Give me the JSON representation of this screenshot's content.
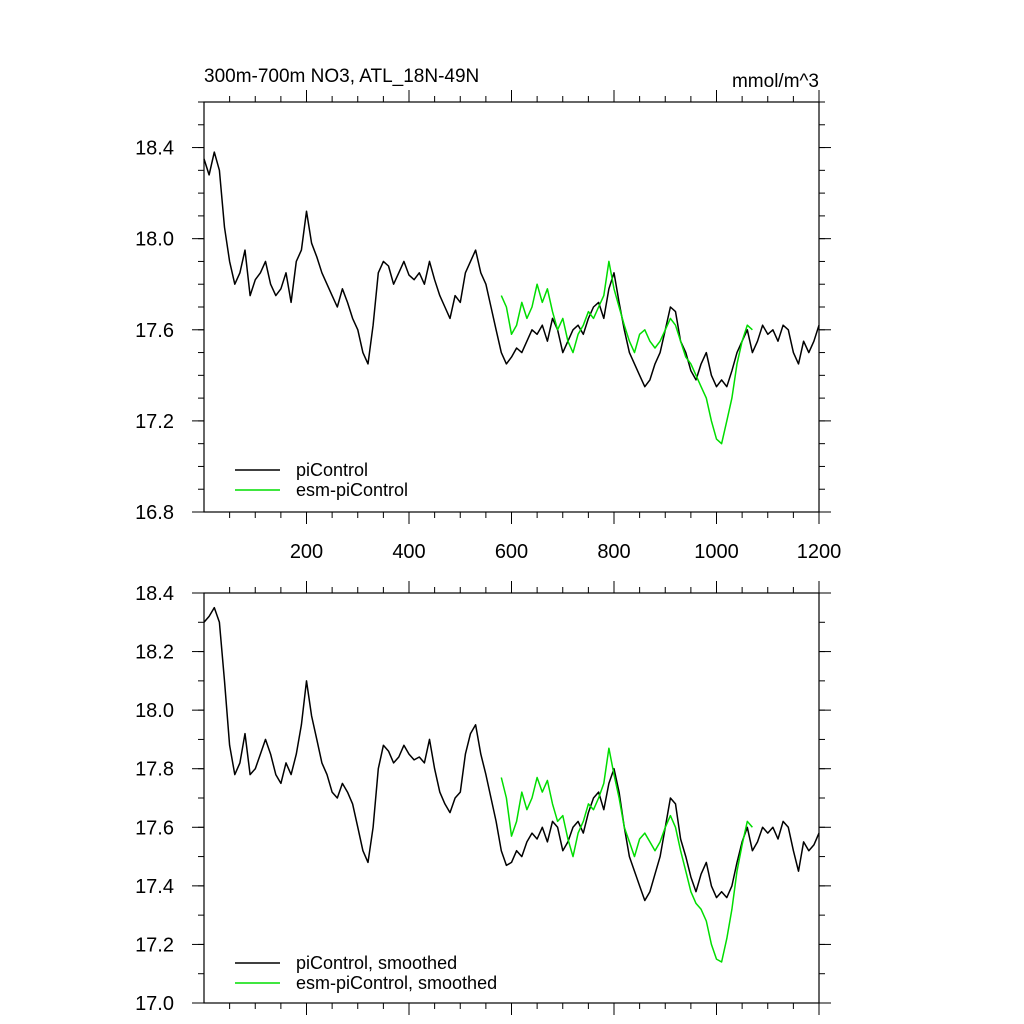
{
  "colors": {
    "piControl": "#000000",
    "esm_piControl": "#00dd00"
  },
  "chart_data": [
    {
      "type": "line",
      "title": "300m-700m NO3, ATL_18N-49N",
      "units": "mmol/m^3",
      "xlim": [
        0,
        1200
      ],
      "ylim": [
        16.8,
        18.6
      ],
      "xticks": [
        200,
        400,
        600,
        800,
        1000,
        1200
      ],
      "xtick_labels": [
        "200",
        "400",
        "600",
        "800",
        "1000",
        "1200"
      ],
      "yticks": [
        16.8,
        17.2,
        17.6,
        18.0,
        18.4
      ],
      "ytick_labels": [
        "16.8",
        "17.2",
        "17.6",
        "18.0",
        "18.4"
      ],
      "legend": [
        "piControl",
        "esm-piControl"
      ],
      "legend_position": "bottom-left",
      "series": [
        {
          "name": "piControl",
          "x": [
            0,
            10,
            20,
            30,
            40,
            50,
            60,
            70,
            80,
            90,
            100,
            110,
            120,
            130,
            140,
            150,
            160,
            170,
            180,
            190,
            200,
            210,
            220,
            230,
            240,
            250,
            260,
            270,
            280,
            290,
            300,
            310,
            320,
            330,
            340,
            350,
            360,
            370,
            380,
            390,
            400,
            410,
            420,
            430,
            440,
            450,
            460,
            470,
            480,
            490,
            500,
            510,
            520,
            530,
            540,
            550,
            560,
            570,
            580,
            590,
            600,
            610,
            620,
            630,
            640,
            650,
            660,
            670,
            680,
            690,
            700,
            710,
            720,
            730,
            740,
            750,
            760,
            770,
            780,
            790,
            800,
            810,
            820,
            830,
            840,
            850,
            860,
            870,
            880,
            890,
            900,
            910,
            920,
            930,
            940,
            950,
            960,
            970,
            980,
            990,
            1000,
            1010,
            1020,
            1030,
            1040,
            1050,
            1060,
            1070,
            1080,
            1090,
            1100,
            1110,
            1120,
            1130,
            1140,
            1150,
            1160,
            1170,
            1180,
            1190,
            1200
          ],
          "y": [
            18.35,
            18.28,
            18.38,
            18.3,
            18.05,
            17.9,
            17.8,
            17.85,
            17.95,
            17.75,
            17.82,
            17.85,
            17.9,
            17.8,
            17.75,
            17.78,
            17.85,
            17.72,
            17.9,
            17.95,
            18.12,
            17.98,
            17.92,
            17.85,
            17.8,
            17.75,
            17.7,
            17.78,
            17.72,
            17.65,
            17.6,
            17.5,
            17.45,
            17.62,
            17.85,
            17.9,
            17.88,
            17.8,
            17.85,
            17.9,
            17.84,
            17.82,
            17.85,
            17.8,
            17.9,
            17.82,
            17.75,
            17.7,
            17.65,
            17.75,
            17.72,
            17.85,
            17.9,
            17.95,
            17.85,
            17.8,
            17.7,
            17.6,
            17.5,
            17.45,
            17.48,
            17.52,
            17.5,
            17.55,
            17.6,
            17.58,
            17.62,
            17.55,
            17.65,
            17.6,
            17.5,
            17.55,
            17.6,
            17.62,
            17.58,
            17.65,
            17.7,
            17.72,
            17.65,
            17.78,
            17.85,
            17.72,
            17.6,
            17.5,
            17.45,
            17.4,
            17.35,
            17.38,
            17.45,
            17.5,
            17.6,
            17.7,
            17.68,
            17.55,
            17.5,
            17.42,
            17.38,
            17.45,
            17.5,
            17.4,
            17.35,
            17.38,
            17.35,
            17.42,
            17.5,
            17.55,
            17.6,
            17.5,
            17.55,
            17.62,
            17.58,
            17.6,
            17.55,
            17.62,
            17.6,
            17.5,
            17.45,
            17.55,
            17.5,
            17.55,
            17.62
          ]
        },
        {
          "name": "esm-piControl",
          "x": [
            580,
            590,
            600,
            610,
            620,
            630,
            640,
            650,
            660,
            670,
            680,
            690,
            700,
            710,
            720,
            730,
            740,
            750,
            760,
            770,
            780,
            790,
            800,
            810,
            820,
            830,
            840,
            850,
            860,
            870,
            880,
            890,
            900,
            910,
            920,
            930,
            940,
            950,
            960,
            970,
            980,
            990,
            1000,
            1010,
            1020,
            1030,
            1040,
            1050,
            1060,
            1070
          ],
          "y": [
            17.75,
            17.7,
            17.58,
            17.62,
            17.72,
            17.65,
            17.7,
            17.8,
            17.72,
            17.78,
            17.68,
            17.6,
            17.65,
            17.55,
            17.5,
            17.58,
            17.62,
            17.68,
            17.65,
            17.7,
            17.75,
            17.9,
            17.78,
            17.7,
            17.62,
            17.55,
            17.5,
            17.58,
            17.6,
            17.55,
            17.52,
            17.55,
            17.6,
            17.65,
            17.62,
            17.55,
            17.48,
            17.45,
            17.4,
            17.35,
            17.3,
            17.2,
            17.12,
            17.1,
            17.2,
            17.3,
            17.45,
            17.55,
            17.62,
            17.6
          ]
        }
      ]
    },
    {
      "type": "line",
      "xlim": [
        0,
        1200
      ],
      "ylim": [
        17.0,
        18.4
      ],
      "yticks": [
        17.0,
        17.2,
        17.4,
        17.6,
        17.8,
        18.0,
        18.2,
        18.4
      ],
      "ytick_labels": [
        "17.0",
        "17.2",
        "17.4",
        "17.6",
        "17.8",
        "18.0",
        "18.2",
        "18.4"
      ],
      "xticks": [
        200,
        400,
        600,
        800,
        1000,
        1200
      ],
      "legend": [
        "piControl, smoothed",
        "esm-piControl, smoothed"
      ],
      "legend_position": "bottom-left",
      "series": [
        {
          "name": "piControl, smoothed",
          "x": [
            0,
            10,
            20,
            30,
            40,
            50,
            60,
            70,
            80,
            90,
            100,
            110,
            120,
            130,
            140,
            150,
            160,
            170,
            180,
            190,
            200,
            210,
            220,
            230,
            240,
            250,
            260,
            270,
            280,
            290,
            300,
            310,
            320,
            330,
            340,
            350,
            360,
            370,
            380,
            390,
            400,
            410,
            420,
            430,
            440,
            450,
            460,
            470,
            480,
            490,
            500,
            510,
            520,
            530,
            540,
            550,
            560,
            570,
            580,
            590,
            600,
            610,
            620,
            630,
            640,
            650,
            660,
            670,
            680,
            690,
            700,
            710,
            720,
            730,
            740,
            750,
            760,
            770,
            780,
            790,
            800,
            810,
            820,
            830,
            840,
            850,
            860,
            870,
            880,
            890,
            900,
            910,
            920,
            930,
            940,
            950,
            960,
            970,
            980,
            990,
            1000,
            1010,
            1020,
            1030,
            1040,
            1050,
            1060,
            1070,
            1080,
            1090,
            1100,
            1110,
            1120,
            1130,
            1140,
            1150,
            1160,
            1170,
            1180,
            1190,
            1200
          ],
          "y": [
            18.3,
            18.32,
            18.35,
            18.3,
            18.1,
            17.88,
            17.78,
            17.82,
            17.92,
            17.78,
            17.8,
            17.85,
            17.9,
            17.85,
            17.78,
            17.75,
            17.82,
            17.78,
            17.85,
            17.95,
            18.1,
            17.98,
            17.9,
            17.82,
            17.78,
            17.72,
            17.7,
            17.75,
            17.72,
            17.68,
            17.6,
            17.52,
            17.48,
            17.6,
            17.8,
            17.88,
            17.86,
            17.82,
            17.84,
            17.88,
            17.85,
            17.83,
            17.84,
            17.82,
            17.9,
            17.8,
            17.72,
            17.68,
            17.65,
            17.7,
            17.72,
            17.85,
            17.92,
            17.95,
            17.85,
            17.78,
            17.7,
            17.62,
            17.52,
            17.47,
            17.48,
            17.52,
            17.5,
            17.55,
            17.58,
            17.56,
            17.6,
            17.55,
            17.62,
            17.6,
            17.52,
            17.55,
            17.6,
            17.62,
            17.58,
            17.65,
            17.7,
            17.72,
            17.66,
            17.75,
            17.8,
            17.72,
            17.6,
            17.5,
            17.45,
            17.4,
            17.35,
            17.38,
            17.44,
            17.5,
            17.6,
            17.7,
            17.68,
            17.56,
            17.5,
            17.43,
            17.38,
            17.44,
            17.48,
            17.4,
            17.36,
            17.38,
            17.36,
            17.4,
            17.48,
            17.55,
            17.6,
            17.52,
            17.55,
            17.6,
            17.58,
            17.6,
            17.56,
            17.62,
            17.6,
            17.52,
            17.45,
            17.55,
            17.52,
            17.54,
            17.58
          ]
        },
        {
          "name": "esm-piControl, smoothed",
          "x": [
            580,
            590,
            600,
            610,
            620,
            630,
            640,
            650,
            660,
            670,
            680,
            690,
            700,
            710,
            720,
            730,
            740,
            750,
            760,
            770,
            780,
            790,
            800,
            810,
            820,
            830,
            840,
            850,
            860,
            870,
            880,
            890,
            900,
            910,
            920,
            930,
            940,
            950,
            960,
            970,
            980,
            990,
            1000,
            1010,
            1020,
            1030,
            1040,
            1050,
            1060,
            1070
          ],
          "y": [
            17.77,
            17.7,
            17.57,
            17.62,
            17.72,
            17.66,
            17.7,
            17.77,
            17.72,
            17.76,
            17.68,
            17.62,
            17.64,
            17.56,
            17.5,
            17.58,
            17.62,
            17.68,
            17.66,
            17.7,
            17.75,
            17.87,
            17.78,
            17.7,
            17.6,
            17.55,
            17.5,
            17.56,
            17.58,
            17.55,
            17.52,
            17.55,
            17.6,
            17.64,
            17.6,
            17.52,
            17.45,
            17.38,
            17.34,
            17.32,
            17.28,
            17.2,
            17.15,
            17.14,
            17.22,
            17.32,
            17.45,
            17.54,
            17.62,
            17.6
          ]
        }
      ]
    }
  ]
}
